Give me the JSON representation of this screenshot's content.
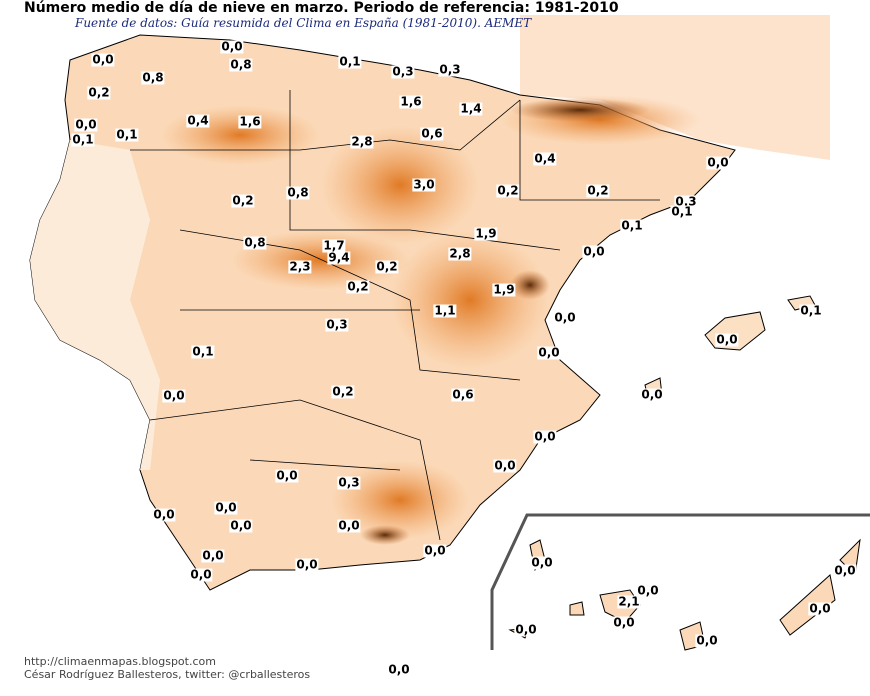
{
  "title": "Número medio de día de nieve en marzo. Periodo de referencia: 1981-2010",
  "source": "Fuente de datos: Guía resumida del Clima en España (1981-2010). AEMET",
  "footer": {
    "blog": "http://climaenmapas.blogspot.com",
    "author": "César Rodríguez Ballesteros, twitter: @crballesteros"
  },
  "colors": {
    "low": "#fde9d6",
    "mid": "#f3a766",
    "high": "#e07a25",
    "peak": "#5a2a08",
    "border": "#000000"
  },
  "station_values": [
    "0,0",
    "0,0",
    "0,8",
    "0,8",
    "0,1",
    "0,3",
    "0,3",
    "0,2",
    "1,6",
    "1,4",
    "0,0",
    "0,1",
    "0,1",
    "0,4",
    "1,6",
    "0,6",
    "2,8",
    "0,4",
    "0,0",
    "3,0",
    "0,2",
    "0,2",
    "0,3",
    "0,1",
    "0,2",
    "0,8",
    "0,1",
    "1,9",
    "0,8",
    "1,7",
    "9,4",
    "2,8",
    "0,0",
    "2,3",
    "0,2",
    "1,9",
    "0,2",
    "0,1",
    "1,1",
    "0,0",
    "0,3",
    "0,0",
    "0,1",
    "0,0",
    "0,2",
    "0,6",
    "0,0",
    "0,0",
    "0,0",
    "0,0",
    "0,0",
    "0,3",
    "0,0",
    "0,0",
    "0,0",
    "0,0",
    "0,0",
    "0,0",
    "0,0",
    "0,0",
    "0,0",
    "0,0",
    "2,1",
    "0,0",
    "0,0",
    "0,0",
    "0,0",
    "0,0",
    "0,0"
  ]
}
